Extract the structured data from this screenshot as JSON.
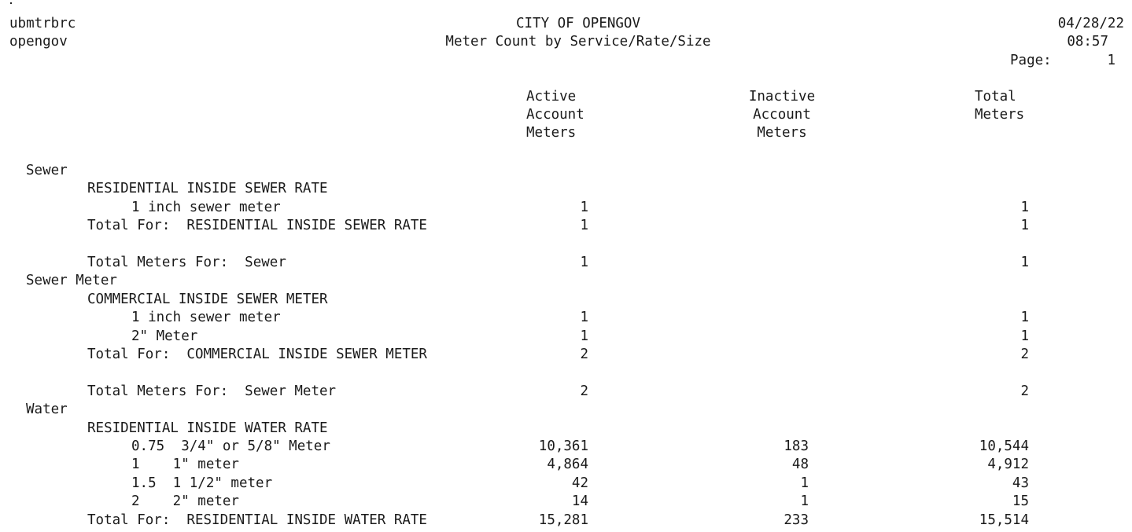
{
  "header": {
    "dot": ".",
    "program": "ubmtrbrc",
    "user": "opengov",
    "org": "CITY OF OPENGOV",
    "title": "Meter Count by Service/Rate/Size",
    "date": "04/28/22",
    "time": "08:57",
    "page_label": "Page:",
    "page_num": "1"
  },
  "columns": {
    "active": [
      "Active",
      "Account",
      "Meters"
    ],
    "inactive": [
      "Inactive",
      "Account",
      "Meters"
    ],
    "total": [
      "Total",
      "Meters"
    ]
  },
  "rows": [
    {
      "text": "Sewer",
      "indent": 0,
      "active": "",
      "inactive": "",
      "total": ""
    },
    {
      "text": "RESIDENTIAL INSIDE SEWER RATE",
      "indent": 1,
      "active": "",
      "inactive": "",
      "total": ""
    },
    {
      "text": "1 inch sewer meter",
      "indent": 2,
      "active": "1",
      "inactive": "",
      "total": "1"
    },
    {
      "text": "Total For:  RESIDENTIAL INSIDE SEWER RATE",
      "indent": 1,
      "active": "1",
      "inactive": "",
      "total": "1"
    },
    {
      "text": "",
      "indent": 0,
      "active": "",
      "inactive": "",
      "total": ""
    },
    {
      "text": "Total Meters For:  Sewer",
      "indent": 1,
      "active": "1",
      "inactive": "",
      "total": "1"
    },
    {
      "text": "Sewer Meter",
      "indent": 0,
      "active": "",
      "inactive": "",
      "total": ""
    },
    {
      "text": "COMMERCIAL INSIDE SEWER METER",
      "indent": 1,
      "active": "",
      "inactive": "",
      "total": ""
    },
    {
      "text": "1 inch sewer meter",
      "indent": 2,
      "active": "1",
      "inactive": "",
      "total": "1"
    },
    {
      "text": "2\" Meter",
      "indent": 2,
      "active": "1",
      "inactive": "",
      "total": "1"
    },
    {
      "text": "Total For:  COMMERCIAL INSIDE SEWER METER",
      "indent": 1,
      "active": "2",
      "inactive": "",
      "total": "2"
    },
    {
      "text": "",
      "indent": 0,
      "active": "",
      "inactive": "",
      "total": ""
    },
    {
      "text": "Total Meters For:  Sewer Meter",
      "indent": 1,
      "active": "2",
      "inactive": "",
      "total": "2"
    },
    {
      "text": "Water",
      "indent": 0,
      "active": "",
      "inactive": "",
      "total": ""
    },
    {
      "text": "RESIDENTIAL INSIDE WATER RATE",
      "indent": 1,
      "active": "",
      "inactive": "",
      "total": ""
    },
    {
      "text": "0.75  3/4\" or 5/8\" Meter",
      "indent": 2,
      "active": "10,361",
      "inactive": "183",
      "total": "10,544"
    },
    {
      "text": "1    1\" meter",
      "indent": 2,
      "active": "4,864",
      "inactive": "48",
      "total": "4,912"
    },
    {
      "text": "1.5  1 1/2\" meter",
      "indent": 2,
      "active": "42",
      "inactive": "1",
      "total": "43"
    },
    {
      "text": "2    2\" meter",
      "indent": 2,
      "active": "14",
      "inactive": "1",
      "total": "15"
    },
    {
      "text": "Total For:  RESIDENTIAL INSIDE WATER RATE",
      "indent": 1,
      "active": "15,281",
      "inactive": "233",
      "total": "15,514"
    }
  ]
}
